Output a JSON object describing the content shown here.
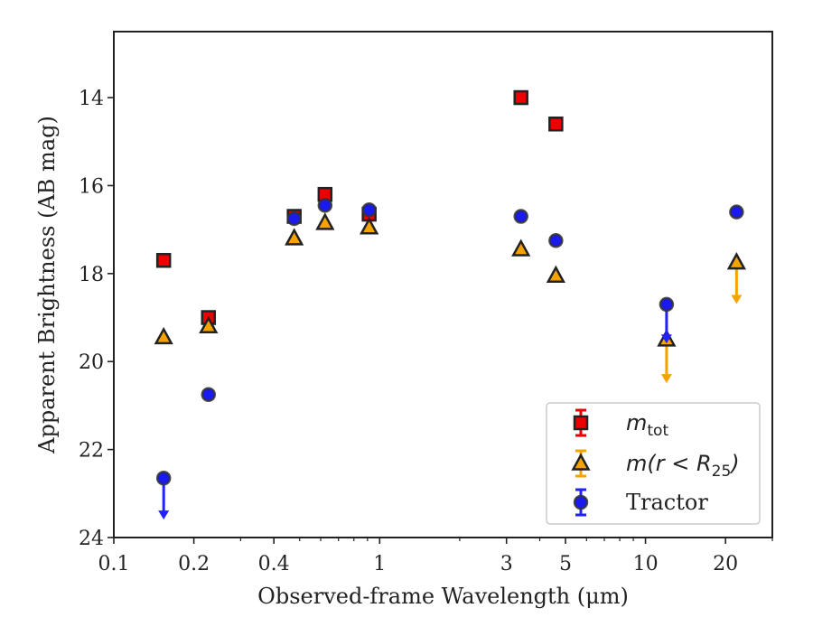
{
  "chart_data": {
    "type": "scatter",
    "title": "",
    "xlabel": "Observed-frame Wavelength (μm)",
    "ylabel": "Apparent Brightness (AB mag)",
    "xscale": "log",
    "xlim": [
      0.1,
      30
    ],
    "ylim": [
      24,
      12.5
    ],
    "y_inverted": true,
    "grid": false,
    "legend_position": "lower-right",
    "x_ticks": [
      {
        "value": 0.1,
        "label": "0.1"
      },
      {
        "value": 0.2,
        "label": "0.2"
      },
      {
        "value": 0.4,
        "label": "0.4"
      },
      {
        "value": 1,
        "label": "1"
      },
      {
        "value": 3,
        "label": "3"
      },
      {
        "value": 5,
        "label": "5"
      },
      {
        "value": 10,
        "label": "10"
      },
      {
        "value": 20,
        "label": "20"
      }
    ],
    "y_ticks": [
      {
        "value": 14,
        "label": "14"
      },
      {
        "value": 16,
        "label": "16"
      },
      {
        "value": 18,
        "label": "18"
      },
      {
        "value": 20,
        "label": "20"
      },
      {
        "value": 22,
        "label": "22"
      },
      {
        "value": 24,
        "label": "24"
      }
    ],
    "series": [
      {
        "name": "m_tot",
        "legend_main": "m",
        "legend_sub": "tot",
        "marker": "square",
        "color": "#ee0000",
        "error_color": "#ee0000",
        "points": [
          {
            "x": 0.154,
            "y": 17.7
          },
          {
            "x": 0.227,
            "y": 19.0
          },
          {
            "x": 0.477,
            "y": 16.7
          },
          {
            "x": 0.623,
            "y": 16.2
          },
          {
            "x": 0.913,
            "y": 16.65
          },
          {
            "x": 3.4,
            "y": 14.0
          },
          {
            "x": 4.6,
            "y": 14.6
          }
        ]
      },
      {
        "name": "m(r < R25)",
        "legend_main": "m(r < R",
        "legend_sub": "25",
        "legend_end": ")",
        "marker": "triangle",
        "color": "#f5a300",
        "error_color": "#f5a300",
        "points": [
          {
            "x": 0.154,
            "y": 19.45
          },
          {
            "x": 0.227,
            "y": 19.2
          },
          {
            "x": 0.477,
            "y": 17.2
          },
          {
            "x": 0.623,
            "y": 16.85
          },
          {
            "x": 0.913,
            "y": 16.95
          },
          {
            "x": 3.4,
            "y": 17.45
          },
          {
            "x": 4.6,
            "y": 18.05
          },
          {
            "x": 12.0,
            "y": 19.5,
            "upper_limit": true,
            "limit_to": 20.45
          },
          {
            "x": 22.0,
            "y": 17.75,
            "upper_limit": true,
            "limit_to": 18.65
          }
        ]
      },
      {
        "name": "Tractor",
        "legend_main": "Tractor",
        "marker": "circle",
        "color": "#1a1aee",
        "error_color": "#2222ff",
        "points": [
          {
            "x": 0.154,
            "y": 22.65,
            "upper_limit": true,
            "limit_to": 23.55
          },
          {
            "x": 0.227,
            "y": 20.75
          },
          {
            "x": 0.477,
            "y": 16.75
          },
          {
            "x": 0.623,
            "y": 16.45
          },
          {
            "x": 0.913,
            "y": 16.55
          },
          {
            "x": 3.4,
            "y": 16.7
          },
          {
            "x": 4.6,
            "y": 17.25
          },
          {
            "x": 12.0,
            "y": 18.7,
            "upper_limit": true,
            "limit_to": 19.55
          },
          {
            "x": 22.0,
            "y": 16.6
          }
        ]
      }
    ]
  }
}
